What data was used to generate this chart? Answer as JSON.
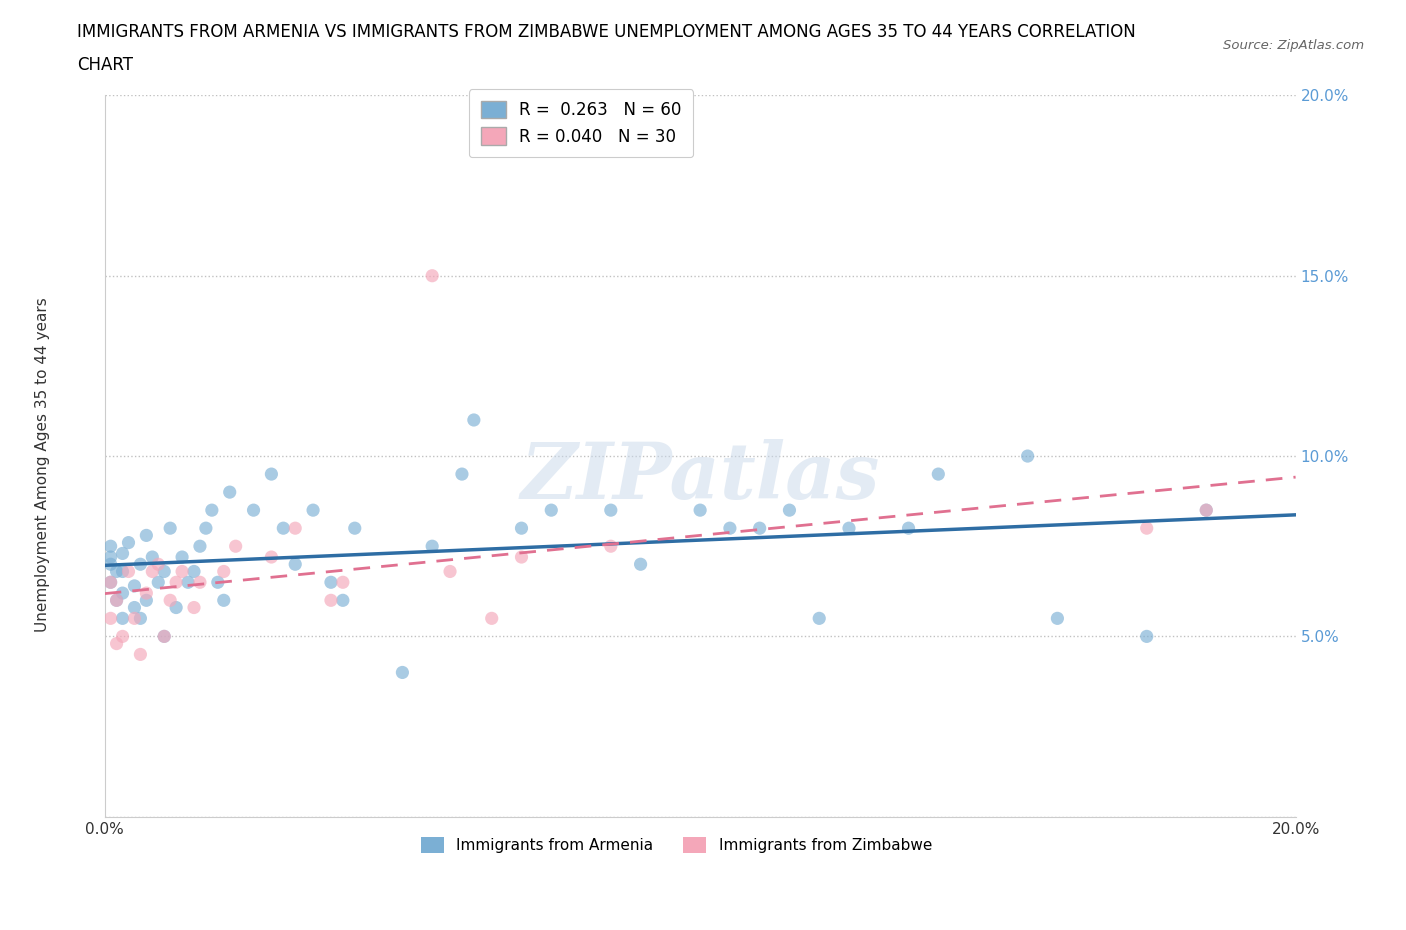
{
  "title_line1": "IMMIGRANTS FROM ARMENIA VS IMMIGRANTS FROM ZIMBABWE UNEMPLOYMENT AMONG AGES 35 TO 44 YEARS CORRELATION",
  "title_line2": "CHART",
  "source_text": "Source: ZipAtlas.com",
  "ylabel": "Unemployment Among Ages 35 to 44 years",
  "xlim": [
    0.0,
    0.2
  ],
  "ylim": [
    0.0,
    0.2
  ],
  "armenia_color": "#7bafd4",
  "zimbabwe_color": "#f4a7b9",
  "armenia_line_color": "#2e6da4",
  "zimbabwe_line_color": "#e07090",
  "R_armenia": 0.263,
  "N_armenia": 60,
  "R_zimbabwe": 0.04,
  "N_zimbabwe": 30,
  "watermark": "ZIPatlas",
  "legend_label_armenia": "Immigrants from Armenia",
  "legend_label_zimbabwe": "Immigrants from Zimbabwe",
  "armenia_x": [
    0.001,
    0.001,
    0.001,
    0.001,
    0.002,
    0.002,
    0.003,
    0.003,
    0.003,
    0.003,
    0.004,
    0.005,
    0.005,
    0.006,
    0.006,
    0.007,
    0.007,
    0.008,
    0.009,
    0.01,
    0.01,
    0.011,
    0.012,
    0.013,
    0.014,
    0.015,
    0.016,
    0.017,
    0.018,
    0.019,
    0.02,
    0.021,
    0.025,
    0.028,
    0.03,
    0.032,
    0.035,
    0.038,
    0.04,
    0.042,
    0.05,
    0.055,
    0.06,
    0.062,
    0.07,
    0.075,
    0.085,
    0.09,
    0.1,
    0.105,
    0.11,
    0.115,
    0.12,
    0.125,
    0.135,
    0.14,
    0.155,
    0.16,
    0.175,
    0.185
  ],
  "armenia_y": [
    0.065,
    0.07,
    0.072,
    0.075,
    0.06,
    0.068,
    0.055,
    0.062,
    0.068,
    0.073,
    0.076,
    0.058,
    0.064,
    0.055,
    0.07,
    0.06,
    0.078,
    0.072,
    0.065,
    0.05,
    0.068,
    0.08,
    0.058,
    0.072,
    0.065,
    0.068,
    0.075,
    0.08,
    0.085,
    0.065,
    0.06,
    0.09,
    0.085,
    0.095,
    0.08,
    0.07,
    0.085,
    0.065,
    0.06,
    0.08,
    0.04,
    0.075,
    0.095,
    0.11,
    0.08,
    0.085,
    0.085,
    0.07,
    0.085,
    0.08,
    0.08,
    0.085,
    0.055,
    0.08,
    0.08,
    0.095,
    0.1,
    0.055,
    0.05,
    0.085
  ],
  "zimbabwe_x": [
    0.001,
    0.001,
    0.002,
    0.002,
    0.003,
    0.004,
    0.005,
    0.006,
    0.007,
    0.008,
    0.009,
    0.01,
    0.011,
    0.012,
    0.013,
    0.015,
    0.016,
    0.02,
    0.022,
    0.028,
    0.032,
    0.038,
    0.04,
    0.055,
    0.058,
    0.065,
    0.07,
    0.085,
    0.175,
    0.185
  ],
  "zimbabwe_y": [
    0.055,
    0.065,
    0.048,
    0.06,
    0.05,
    0.068,
    0.055,
    0.045,
    0.062,
    0.068,
    0.07,
    0.05,
    0.06,
    0.065,
    0.068,
    0.058,
    0.065,
    0.068,
    0.075,
    0.072,
    0.08,
    0.06,
    0.065,
    0.15,
    0.068,
    0.055,
    0.072,
    0.075,
    0.08,
    0.085
  ]
}
